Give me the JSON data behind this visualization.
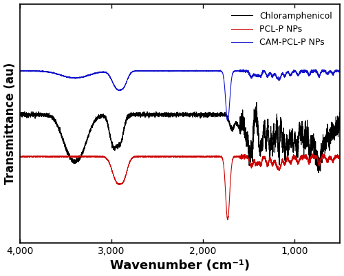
{
  "xlabel": "Wavenumber (cm⁻¹)",
  "ylabel": "Transmittance (au)",
  "xmin": 500,
  "xmax": 4000,
  "background_color": "#ffffff",
  "line_colors": [
    "#000000",
    "#cc0000",
    "#1111cc"
  ],
  "legend_labels": [
    "Chloramphenicol",
    "PCL-P NPs",
    "CAM-PCL-P NPs"
  ],
  "line_width": 0.8
}
